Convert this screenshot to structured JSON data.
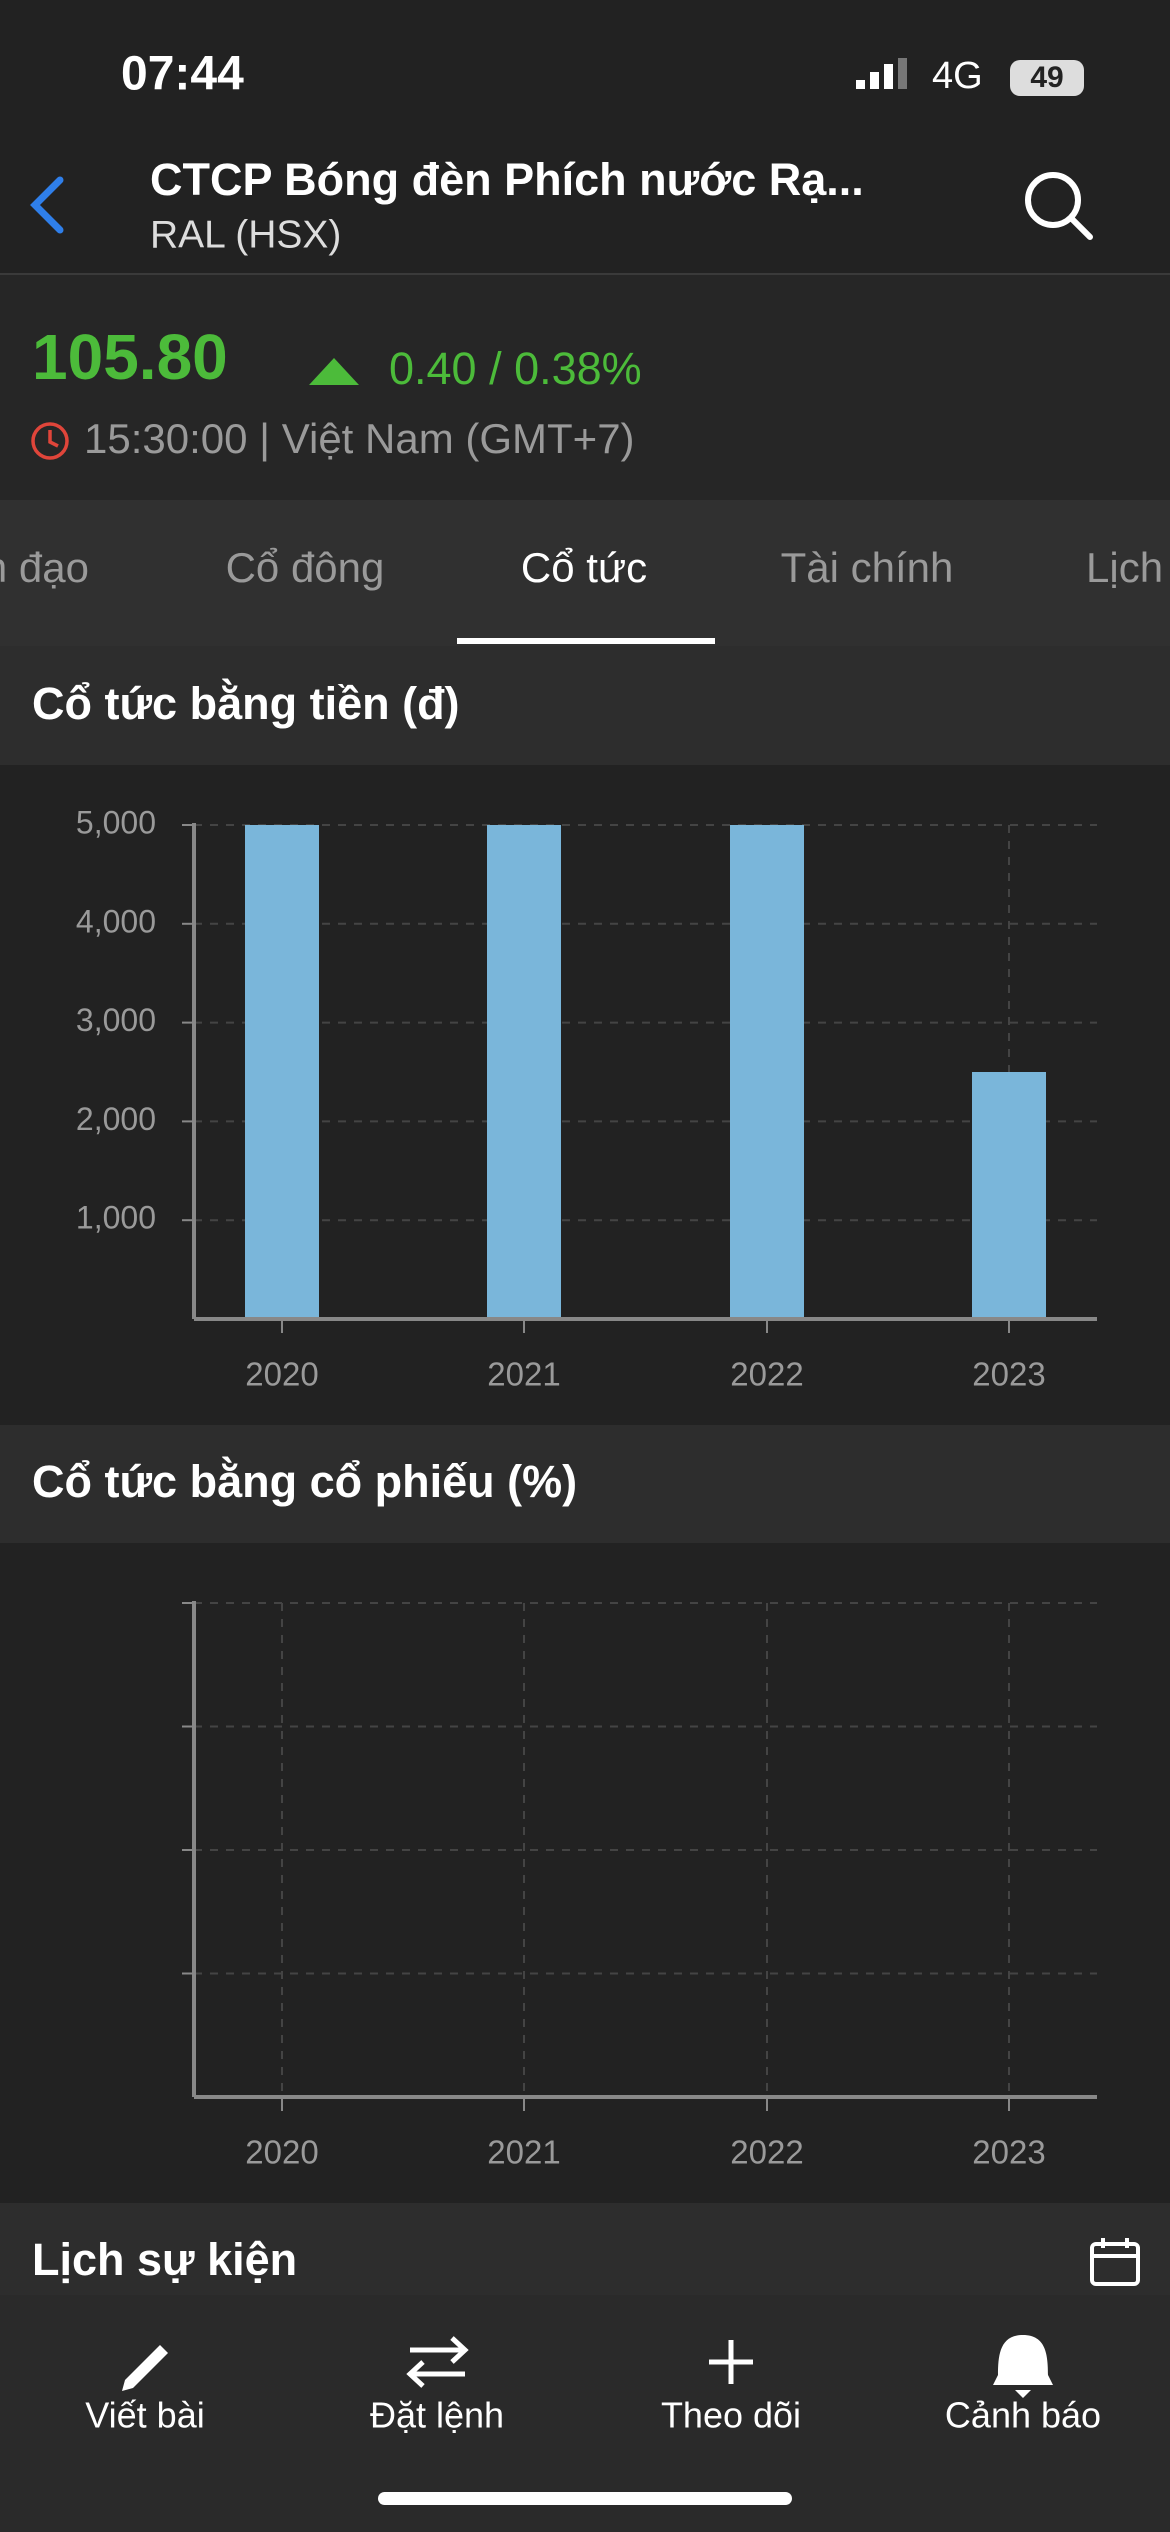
{
  "status_bar": {
    "time": "07:44",
    "network": "4G",
    "battery": "49"
  },
  "header": {
    "title": "CTCP Bóng đèn Phích nước Rạ...",
    "subtitle": "RAL (HSX)"
  },
  "quote": {
    "price": "105.80",
    "change": "0.40 / 0.38%",
    "time": "15:30:00 | Việt Nam (GMT+7)"
  },
  "tabs": [
    "Lãnh đạo",
    "Cổ đông",
    "Cổ tức",
    "Tài chính",
    "Lịch sử"
  ],
  "chart_data": [
    {
      "type": "bar",
      "title": "Cổ tức bằng tiền (đ)",
      "categories": [
        "2020",
        "2021",
        "2022",
        "2023"
      ],
      "values": [
        5000,
        5000,
        5000,
        2500
      ],
      "color": "#7ab6da",
      "ylim": [
        0,
        5000
      ],
      "yticks": [
        {
          "value": 1000,
          "label": "1,000"
        },
        {
          "value": 2000,
          "label": "2,000"
        },
        {
          "value": 3000,
          "label": "3,000"
        },
        {
          "value": 4000,
          "label": "4,000"
        },
        {
          "value": 5000,
          "label": "5,000"
        }
      ],
      "grid": true
    },
    {
      "type": "bar",
      "title": "Cổ tức bằng cổ phiếu (%)",
      "categories": [
        "2020",
        "2021",
        "2022",
        "2023"
      ],
      "values": [
        null,
        null,
        null,
        null
      ],
      "color": "#7ab6da",
      "grid": true
    }
  ],
  "events": {
    "title": "Lịch sự kiện"
  },
  "nav": [
    "Viết bài",
    "Đặt lệnh",
    "Theo dõi",
    "Cảnh báo"
  ]
}
